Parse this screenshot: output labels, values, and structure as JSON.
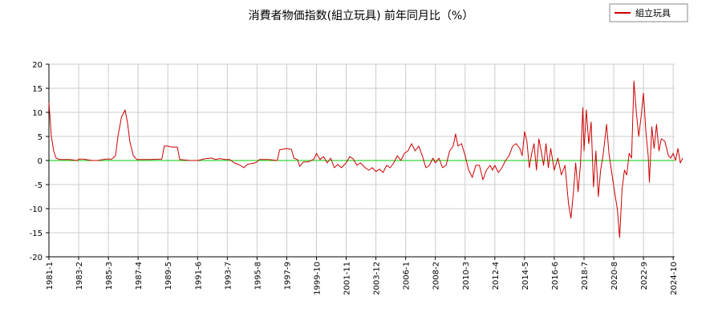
{
  "chart_data": {
    "type": "line",
    "title": "消費者物価指数(組立玩具) 前年同月比（%）",
    "xlabel": "",
    "ylabel": "",
    "ylim": [
      -20,
      20
    ],
    "yticks": [
      20,
      15,
      10,
      5,
      0,
      -5,
      -10,
      -15,
      -20
    ],
    "xticks": [
      "1981-1",
      "1983-2",
      "1985-3",
      "1987-4",
      "1989-5",
      "1991-6",
      "1993-7",
      "1995-8",
      "1997-9",
      "1999-10",
      "2001-11",
      "2003-12",
      "2006-1",
      "2008-2",
      "2010-3",
      "2012-4",
      "2014-5",
      "2016-6",
      "2018-7",
      "2020-8",
      "2022-9",
      "2024-10"
    ],
    "grid": true,
    "legend_position": "top-right",
    "baseline": {
      "value": 0,
      "color": "#00cc00"
    },
    "series": [
      {
        "name": "組立玩具",
        "color": "#cc0000",
        "points": [
          [
            "1981-1",
            12.0
          ],
          [
            "1981-3",
            5.0
          ],
          [
            "1981-5",
            2.0
          ],
          [
            "1981-7",
            0.5
          ],
          [
            "1981-10",
            0.2
          ],
          [
            "1982-6",
            0.2
          ],
          [
            "1983-1",
            0.0
          ],
          [
            "1983-2",
            0.3
          ],
          [
            "1983-6",
            0.3
          ],
          [
            "1984-1",
            0.0
          ],
          [
            "1984-6",
            0.0
          ],
          [
            "1985-1",
            0.3
          ],
          [
            "1985-6",
            0.3
          ],
          [
            "1985-9",
            1.0
          ],
          [
            "1985-11",
            5.0
          ],
          [
            "1986-2",
            9.0
          ],
          [
            "1986-5",
            10.5
          ],
          [
            "1986-7",
            8.0
          ],
          [
            "1986-9",
            4.0
          ],
          [
            "1986-12",
            1.0
          ],
          [
            "1987-3",
            0.2
          ],
          [
            "1988-1",
            0.2
          ],
          [
            "1988-12",
            0.3
          ],
          [
            "1989-2",
            3.0
          ],
          [
            "1989-5",
            3.0
          ],
          [
            "1989-8",
            2.8
          ],
          [
            "1990-1",
            2.8
          ],
          [
            "1990-3",
            0.2
          ],
          [
            "1990-12",
            0.0
          ],
          [
            "1991-6",
            0.0
          ],
          [
            "1992-1",
            0.4
          ],
          [
            "1992-6",
            0.5
          ],
          [
            "1992-9",
            0.2
          ],
          [
            "1993-1",
            0.4
          ],
          [
            "1993-5",
            0.2
          ],
          [
            "1993-9",
            0.2
          ],
          [
            "1994-1",
            -0.5
          ],
          [
            "1994-6",
            -1.0
          ],
          [
            "1994-9",
            -1.5
          ],
          [
            "1994-12",
            -0.8
          ],
          [
            "1995-6",
            -0.5
          ],
          [
            "1995-8",
            -0.3
          ],
          [
            "1995-10",
            0.2
          ],
          [
            "1996-6",
            0.2
          ],
          [
            "1997-1",
            0.0
          ],
          [
            "1997-3",
            2.2
          ],
          [
            "1997-9",
            2.5
          ],
          [
            "1998-1",
            2.3
          ],
          [
            "1998-3",
            0.5
          ],
          [
            "1998-6",
            0.2
          ],
          [
            "1998-8",
            -1.2
          ],
          [
            "1998-11",
            -0.3
          ],
          [
            "1999-3",
            -0.3
          ],
          [
            "1999-8",
            0.3
          ],
          [
            "1999-10",
            1.5
          ],
          [
            "2000-1",
            0.2
          ],
          [
            "2000-4",
            0.8
          ],
          [
            "2000-7",
            -0.5
          ],
          [
            "2000-10",
            0.5
          ],
          [
            "2001-1",
            -1.5
          ],
          [
            "2001-4",
            -0.8
          ],
          [
            "2001-7",
            -1.5
          ],
          [
            "2001-11",
            -0.5
          ],
          [
            "2002-2",
            0.8
          ],
          [
            "2002-5",
            0.3
          ],
          [
            "2002-8",
            -1.0
          ],
          [
            "2002-11",
            -0.5
          ],
          [
            "2003-3",
            -1.5
          ],
          [
            "2003-6",
            -2.0
          ],
          [
            "2003-9",
            -1.5
          ],
          [
            "2003-12",
            -2.3
          ],
          [
            "2004-3",
            -1.8
          ],
          [
            "2004-6",
            -2.5
          ],
          [
            "2004-9",
            -1.0
          ],
          [
            "2004-12",
            -1.5
          ],
          [
            "2005-3",
            -0.5
          ],
          [
            "2005-6",
            1.0
          ],
          [
            "2005-9",
            0.0
          ],
          [
            "2005-12",
            1.5
          ],
          [
            "2006-3",
            2.0
          ],
          [
            "2006-6",
            3.5
          ],
          [
            "2006-9",
            2.0
          ],
          [
            "2006-12",
            3.0
          ],
          [
            "2007-3",
            1.0
          ],
          [
            "2007-6",
            -1.5
          ],
          [
            "2007-9",
            -1.0
          ],
          [
            "2007-12",
            0.5
          ],
          [
            "2008-2",
            -0.5
          ],
          [
            "2008-5",
            0.5
          ],
          [
            "2008-8",
            -1.5
          ],
          [
            "2008-11",
            -1.0
          ],
          [
            "2009-2",
            2.0
          ],
          [
            "2009-5",
            3.0
          ],
          [
            "2009-7",
            5.5
          ],
          [
            "2009-9",
            3.0
          ],
          [
            "2009-12",
            3.5
          ],
          [
            "2010-3",
            1.0
          ],
          [
            "2010-6",
            -2.0
          ],
          [
            "2010-9",
            -3.5
          ],
          [
            "2010-12",
            -1.0
          ],
          [
            "2011-3",
            -1.0
          ],
          [
            "2011-6",
            -4.0
          ],
          [
            "2011-9",
            -2.0
          ],
          [
            "2011-12",
            -1.0
          ],
          [
            "2012-2",
            -2.0
          ],
          [
            "2012-4",
            -1.0
          ],
          [
            "2012-7",
            -2.5
          ],
          [
            "2012-10",
            -1.5
          ],
          [
            "2013-1",
            0.0
          ],
          [
            "2013-4",
            1.0
          ],
          [
            "2013-7",
            3.0
          ],
          [
            "2013-10",
            3.5
          ],
          [
            "2014-1",
            2.5
          ],
          [
            "2014-3",
            1.0
          ],
          [
            "2014-5",
            6.0
          ],
          [
            "2014-7",
            4.0
          ],
          [
            "2014-9",
            -1.5
          ],
          [
            "2014-11",
            1.5
          ],
          [
            "2015-1",
            3.5
          ],
          [
            "2015-3",
            -2.0
          ],
          [
            "2015-5",
            4.5
          ],
          [
            "2015-7",
            2.0
          ],
          [
            "2015-9",
            -1.0
          ],
          [
            "2015-11",
            3.5
          ],
          [
            "2016-1",
            -1.5
          ],
          [
            "2016-3",
            2.5
          ],
          [
            "2016-6",
            -2.0
          ],
          [
            "2016-9",
            0.5
          ],
          [
            "2016-12",
            -3.0
          ],
          [
            "2017-3",
            -1.0
          ],
          [
            "2017-6",
            -9.0
          ],
          [
            "2017-8",
            -12.0
          ],
          [
            "2017-10",
            -7.0
          ],
          [
            "2017-12",
            -0.5
          ],
          [
            "2018-2",
            -6.5
          ],
          [
            "2018-4",
            -1.0
          ],
          [
            "2018-6",
            11.0
          ],
          [
            "2018-7",
            2.0
          ],
          [
            "2018-9",
            10.5
          ],
          [
            "2018-11",
            3.5
          ],
          [
            "2019-1",
            8.0
          ],
          [
            "2019-3",
            -5.5
          ],
          [
            "2019-5",
            2.0
          ],
          [
            "2019-7",
            -7.5
          ],
          [
            "2019-9",
            -2.0
          ],
          [
            "2019-11",
            1.0
          ],
          [
            "2020-2",
            7.5
          ],
          [
            "2020-4",
            1.5
          ],
          [
            "2020-6",
            -2.0
          ],
          [
            "2020-9",
            -7.0
          ],
          [
            "2020-11",
            -10.0
          ],
          [
            "2021-1",
            -16.0
          ],
          [
            "2021-3",
            -6.0
          ],
          [
            "2021-5",
            -2.0
          ],
          [
            "2021-7",
            -3.0
          ],
          [
            "2021-9",
            1.5
          ],
          [
            "2021-11",
            0.5
          ],
          [
            "2022-1",
            16.5
          ],
          [
            "2022-3",
            10.0
          ],
          [
            "2022-5",
            5.0
          ],
          [
            "2022-7",
            9.0
          ],
          [
            "2022-9",
            14.0
          ],
          [
            "2022-11",
            6.0
          ],
          [
            "2023-1",
            1.0
          ],
          [
            "2023-2",
            -4.5
          ],
          [
            "2023-4",
            7.0
          ],
          [
            "2023-6",
            2.5
          ],
          [
            "2023-8",
            7.5
          ],
          [
            "2023-10",
            2.0
          ],
          [
            "2023-12",
            4.5
          ],
          [
            "2024-3",
            4.0
          ],
          [
            "2024-6",
            1.0
          ],
          [
            "2024-8",
            0.5
          ],
          [
            "2024-10",
            1.5
          ],
          [
            "2024-12",
            0.0
          ],
          [
            "2025-2",
            2.5
          ],
          [
            "2025-4",
            -0.5
          ],
          [
            "2025-6",
            0.5
          ]
        ]
      }
    ]
  }
}
